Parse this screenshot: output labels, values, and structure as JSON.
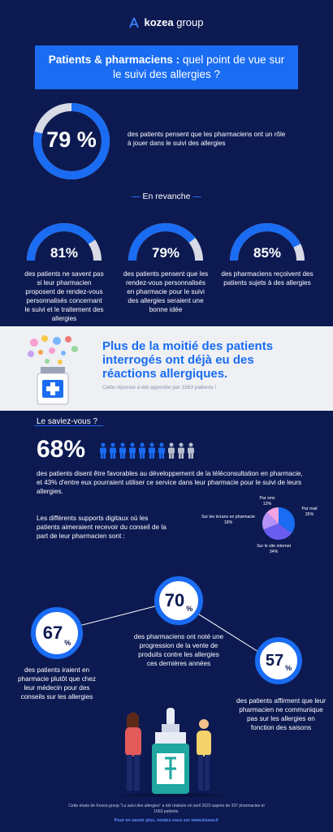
{
  "logo": {
    "brand": "kozea",
    "suffix": "group"
  },
  "banner": {
    "bold": "Patients & pharmaciens :",
    "text": " quel point de vue sur le suivi des allergies ?"
  },
  "hero": {
    "value": 79,
    "label": "79 %",
    "text": "des patients pensent que les pharmaciens ont un rôle à jouer dans le suivi des allergies"
  },
  "revanche": {
    "title": "En revanche"
  },
  "gauges": [
    {
      "value": 81,
      "label": "81%",
      "text": "des patients ne savent pas si leur pharmacien proposent de rendez-vous personnalisés concernant le suivi et le traitement des allergies"
    },
    {
      "value": 79,
      "label": "79%",
      "text": "des patients pensent que les rendez-vous personnalisés en pharmacie pour le suivi des allergies seraient une bonne idée"
    },
    {
      "value": 85,
      "label": "85%",
      "text": "des pharmaciens reçoivent des patients sujets à des allergies"
    }
  ],
  "reactions": {
    "title": "Plus de la moitié des patients interrogés ont déjà eu des réactions allergiques.",
    "note": "Cette réponse a été apportée par 1563 patients !"
  },
  "saviez": {
    "title": "Le saviez-vous ?",
    "value": 68,
    "label": "68%",
    "people_total": 10,
    "people_highlight": 7,
    "text": "des patients disent être favorables au développement de la téléconsultation en pharmacie, et 43% d'entre eux pourraient utiliser ce service dans leur pharmacie pour le suivi de leurs allergies.",
    "supports_text": "Les différents supports digitaux où les patients aimeraient recevoir du conseil de la part de leur pharmacien sont :"
  },
  "chart_data": {
    "type": "pie",
    "slices": [
      {
        "name": "Par mail",
        "value": 35,
        "label": "35%",
        "color": "#1a6cf2"
      },
      {
        "name": "Sur le site internet",
        "value": 34,
        "label": "34%",
        "color": "#6a5cf0"
      },
      {
        "name": "Sur les écrans en pharmacie",
        "value": 18,
        "label": "18%",
        "color": "#b692f6"
      },
      {
        "name": "Par sms",
        "value": 13,
        "label": "13%",
        "color": "#f0a3e4"
      }
    ]
  },
  "stats": [
    {
      "value": "67",
      "unit": "%",
      "text": "des patients iraient en pharmacie plutôt que chez leur médecin pour des conseils sur les allergies"
    },
    {
      "value": "70",
      "unit": "%",
      "text": "des pharmaciens ont noté une progression de la vente de produits contre les allergies ces dernières années"
    },
    {
      "value": "57",
      "unit": "%",
      "text": "des patients affirment que leur pharmacien ne communique pas sur les allergies en fonction des saisons"
    }
  ],
  "footer": {
    "text": "Cette étude de Kozea group \"Le suivi des allergies\" a été réalisée en avril 2023 auprès de 337 pharmacies et 1563 patients.",
    "link": "Pour en savoir plus, rendez-vous sur www.kozea.fr"
  },
  "colors": {
    "bg": "#0d1a52",
    "accent": "#1a6cf2",
    "track": "#d8dbe6"
  }
}
